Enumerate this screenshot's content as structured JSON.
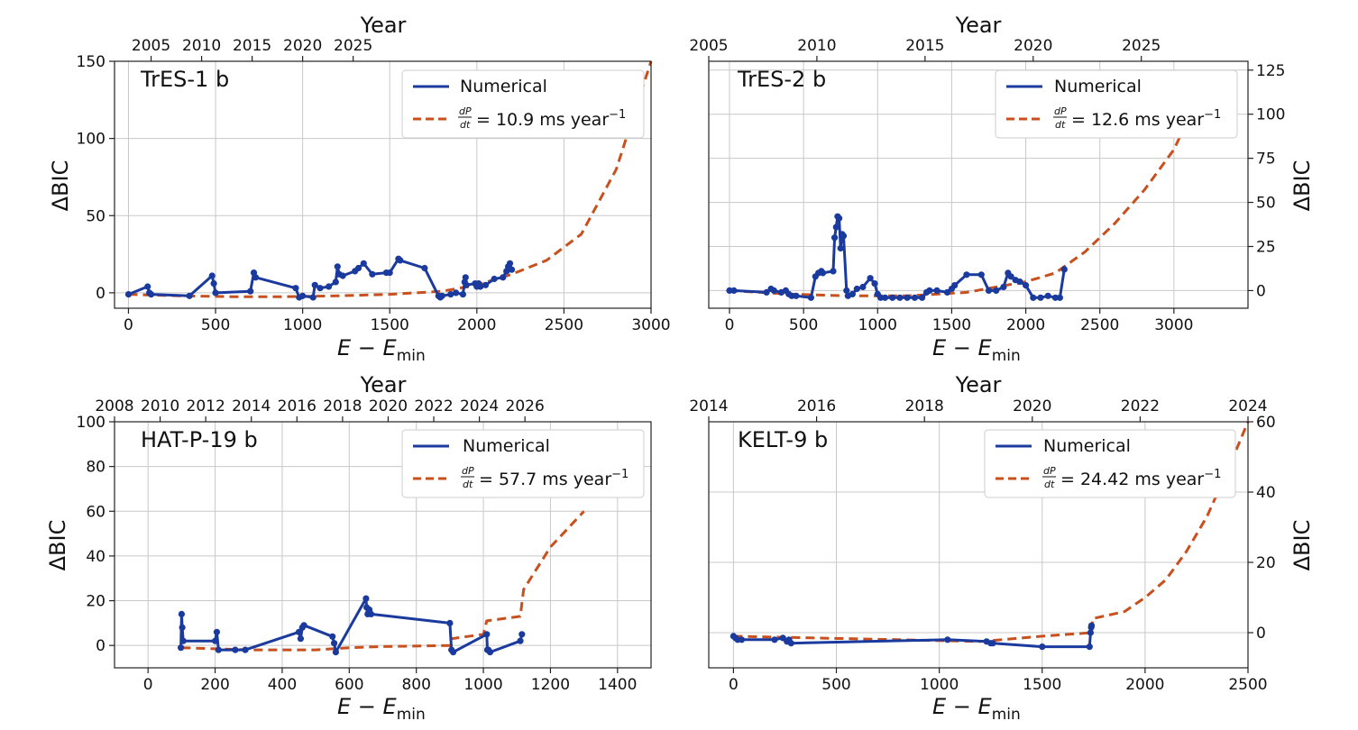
{
  "panels": {
    "tres1": {
      "title": "TrES-1 b",
      "xlabel": "E − E",
      "xlabel_sub": "min",
      "ylabel": "ΔBIC",
      "top_axis_label": "Year",
      "legend_numerical": "Numerical",
      "legend_fit_value": "= 10.9 ms year",
      "legend_fit_exp": "−1"
    },
    "tres2": {
      "title": "TrES-2 b",
      "xlabel": "E − E",
      "xlabel_sub": "min",
      "ylabel": "ΔBIC",
      "top_axis_label": "Year",
      "legend_numerical": "Numerical",
      "legend_fit_value": "= 12.6 ms year",
      "legend_fit_exp": "−1"
    },
    "hatp19": {
      "title": "HAT-P-19 b",
      "xlabel": "E − E",
      "xlabel_sub": "min",
      "ylabel": "ΔBIC",
      "top_axis_label": "Year",
      "legend_numerical": "Numerical",
      "legend_fit_value": "= 57.7 ms year",
      "legend_fit_exp": "−1"
    },
    "kelt9": {
      "title": "KELT-9 b",
      "xlabel": "E − E",
      "xlabel_sub": "min",
      "ylabel": "ΔBIC",
      "top_axis_label": "Year",
      "legend_numerical": "Numerical",
      "legend_fit_value": "= 24.42 ms year",
      "legend_fit_exp": "−1"
    }
  },
  "legend_fraction": {
    "num": "dP",
    "den": "dt"
  },
  "colors": {
    "numerical": "#1a3a9e",
    "fit": "#c8501e",
    "grid": "#c8c8c8"
  },
  "chart_data": [
    {
      "type": "line",
      "title": "TrES-1 b",
      "xlabel": "E − E_min",
      "ylabel": "ΔBIC",
      "xlim": [
        -80,
        3000
      ],
      "ylim": [
        -10,
        150
      ],
      "xticks": [
        0,
        500,
        1000,
        1500,
        2000,
        2500,
        3000
      ],
      "yticks": [
        0,
        50,
        100,
        150
      ],
      "top_axis": {
        "label": "Year",
        "ticks": [
          2005,
          2010,
          2015,
          2020,
          2025
        ],
        "positions": [
          130,
          420,
          710,
          1000,
          1290
        ]
      },
      "grid": true,
      "legend": "top-right",
      "series": [
        {
          "name": "Numerical",
          "style": "solid-markers",
          "x": [
            0,
            110,
            120,
            130,
            350,
            480,
            490,
            500,
            700,
            720,
            730,
            960,
            980,
            1000,
            1060,
            1070,
            1100,
            1150,
            1190,
            1200,
            1210,
            1230,
            1300,
            1320,
            1350,
            1400,
            1480,
            1500,
            1550,
            1560,
            1700,
            1780,
            1790,
            1800,
            1850,
            1880,
            1920,
            1930,
            1935,
            1940,
            1990,
            2000,
            2010,
            2020,
            2050,
            2100,
            2150,
            2170,
            2180,
            2190,
            2200
          ],
          "y": [
            -1,
            4,
            0,
            -1,
            -2,
            11,
            6,
            0,
            1,
            13,
            10,
            3,
            -3,
            -2,
            -3,
            5,
            3,
            4,
            7,
            17,
            12,
            11,
            14,
            16,
            19,
            12,
            13,
            13,
            22,
            21,
            16,
            -2,
            -3,
            -2,
            -1,
            0,
            -1,
            7,
            10,
            5,
            6,
            4,
            6,
            4,
            5,
            9,
            10,
            14,
            17,
            19,
            15
          ]
        },
        {
          "name": "dP/dt = 10.9 ms year^-1",
          "style": "dashed",
          "x": [
            0,
            300,
            600,
            900,
            1200,
            1500,
            1800,
            2000,
            2200,
            2400,
            2600,
            2800,
            3000
          ],
          "y": [
            -1,
            -2,
            -2.5,
            -2.5,
            -2,
            -1,
            1,
            5,
            12,
            21,
            38,
            80,
            150
          ]
        }
      ]
    },
    {
      "type": "line",
      "title": "TrES-2 b",
      "xlabel": "E − E_min",
      "ylabel": "ΔBIC",
      "xlim": [
        -140,
        3500
      ],
      "ylim": [
        -10,
        130
      ],
      "xticks": [
        0,
        500,
        1000,
        1500,
        2000,
        2500,
        3000
      ],
      "yticks": [
        0,
        25,
        50,
        75,
        100,
        125
      ],
      "top_axis": {
        "label": "Year",
        "ticks": [
          2005,
          2010,
          2015,
          2020,
          2025
        ],
        "positions": [
          -140,
          590,
          1320,
          2050,
          2780
        ]
      },
      "grid": true,
      "legend": "top-right",
      "series": [
        {
          "name": "Numerical",
          "style": "solid-markers",
          "x": [
            0,
            30,
            250,
            280,
            300,
            350,
            380,
            400,
            420,
            450,
            550,
            580,
            600,
            620,
            630,
            700,
            710,
            720,
            730,
            740,
            750,
            760,
            770,
            790,
            800,
            830,
            860,
            900,
            950,
            980,
            1000,
            1020,
            1050,
            1100,
            1150,
            1200,
            1250,
            1300,
            1330,
            1350,
            1400,
            1470,
            1500,
            1520,
            1600,
            1700,
            1750,
            1800,
            1850,
            1880,
            1900,
            1930,
            1960,
            2000,
            2050,
            2100,
            2150,
            2200,
            2230,
            2260
          ],
          "y": [
            0,
            0,
            -1,
            1,
            0,
            -1,
            0,
            -2,
            -3,
            -3,
            -4,
            8,
            10,
            11,
            10,
            11,
            30,
            36,
            42,
            41,
            24,
            32,
            31,
            0,
            -3,
            -2,
            1,
            2,
            7,
            4,
            -2,
            -4,
            -4,
            -4,
            -4,
            -4,
            -4,
            -4,
            -1,
            0,
            0,
            -1,
            1,
            3,
            9,
            9,
            0,
            0,
            2,
            10,
            8,
            6,
            5,
            3,
            -4,
            -4,
            -3,
            -4,
            -4,
            12
          ]
        },
        {
          "name": "dP/dt = 12.6 ms year^-1",
          "style": "dashed",
          "x": [
            0,
            400,
            800,
            1200,
            1600,
            2000,
            2200,
            2400,
            2600,
            2800,
            3000,
            3250
          ],
          "y": [
            0,
            -2,
            -3,
            -3,
            -1,
            5,
            10,
            22,
            38,
            57,
            80,
            125
          ]
        }
      ]
    },
    {
      "type": "line",
      "title": "HAT-P-19 b",
      "xlabel": "E − E_min",
      "ylabel": "ΔBIC",
      "xlim": [
        -100,
        1500
      ],
      "ylim": [
        -10,
        100
      ],
      "xticks": [
        0,
        200,
        400,
        600,
        800,
        1000,
        1200,
        1400
      ],
      "yticks": [
        0,
        20,
        40,
        60,
        80,
        100
      ],
      "top_axis": {
        "label": "Year",
        "ticks": [
          2008,
          2010,
          2012,
          2014,
          2016,
          2018,
          2020,
          2022,
          2024,
          2026
        ],
        "positions": [
          -100,
          36,
          172,
          308,
          444,
          580,
          716,
          852,
          988,
          1124
        ]
      },
      "grid": true,
      "legend": "top-right",
      "series": [
        {
          "name": "Numerical",
          "style": "solid-markers",
          "x": [
            98,
            100,
            102,
            105,
            200,
            205,
            210,
            260,
            290,
            450,
            455,
            460,
            465,
            550,
            555,
            560,
            650,
            652,
            655,
            658,
            660,
            665,
            900,
            905,
            910,
            1010,
            1012,
            1015,
            1020,
            1110,
            1115
          ],
          "y": [
            -1,
            14,
            8,
            2,
            2,
            6,
            -2,
            -2,
            -2,
            6,
            3,
            8,
            9,
            4,
            1,
            -3,
            21,
            17,
            14,
            15,
            16,
            14,
            10,
            -2,
            -3,
            5,
            -2,
            -2,
            -3,
            2,
            5
          ]
        },
        {
          "name": "dP/dt = 57.7 ms year^-1",
          "style": "dashed",
          "x": [
            100,
            300,
            500,
            600,
            700,
            900,
            905,
            1000,
            1010,
            1110,
            1120,
            1200,
            1300
          ],
          "y": [
            -1,
            -2,
            -2,
            -1,
            -0.5,
            0,
            3,
            5,
            11,
            13,
            25,
            44,
            60
          ]
        }
      ]
    },
    {
      "type": "line",
      "title": "KELT-9 b",
      "xlabel": "E − E_min",
      "ylabel": "ΔBIC",
      "xlim": [
        -120,
        2500
      ],
      "ylim": [
        -10,
        60
      ],
      "xticks": [
        0,
        500,
        1000,
        1500,
        2000,
        2500
      ],
      "yticks": [
        0,
        20,
        40,
        60
      ],
      "top_axis": {
        "label": "Year",
        "ticks": [
          2014,
          2016,
          2018,
          2020,
          2022,
          2024
        ],
        "positions": [
          -120,
          404,
          928,
          1452,
          1976,
          2500
        ]
      },
      "grid": true,
      "legend": "top-right",
      "series": [
        {
          "name": "Numerical",
          "style": "solid-markers",
          "x": [
            0,
            10,
            20,
            40,
            200,
            240,
            260,
            270,
            280,
            1040,
            1230,
            1250,
            1260,
            1500,
            1730,
            1735,
            1738,
            1740
          ],
          "y": [
            -1,
            -1.5,
            -2,
            -2,
            -2,
            -1.5,
            -2.5,
            -2,
            -3,
            -2,
            -2.5,
            -3,
            -3,
            -4,
            -4,
            0,
            1.5,
            2
          ]
        },
        {
          "name": "dP/dt = 24.42 ms year^-1",
          "style": "dashed",
          "x": [
            0,
            400,
            800,
            1200,
            1500,
            1740,
            1745,
            1900,
            2000,
            2100,
            2200,
            2300,
            2400,
            2500
          ],
          "y": [
            -1,
            -1.5,
            -2,
            -2.5,
            -1,
            0,
            4,
            6,
            10,
            15,
            23,
            33,
            46,
            60
          ]
        }
      ]
    }
  ]
}
